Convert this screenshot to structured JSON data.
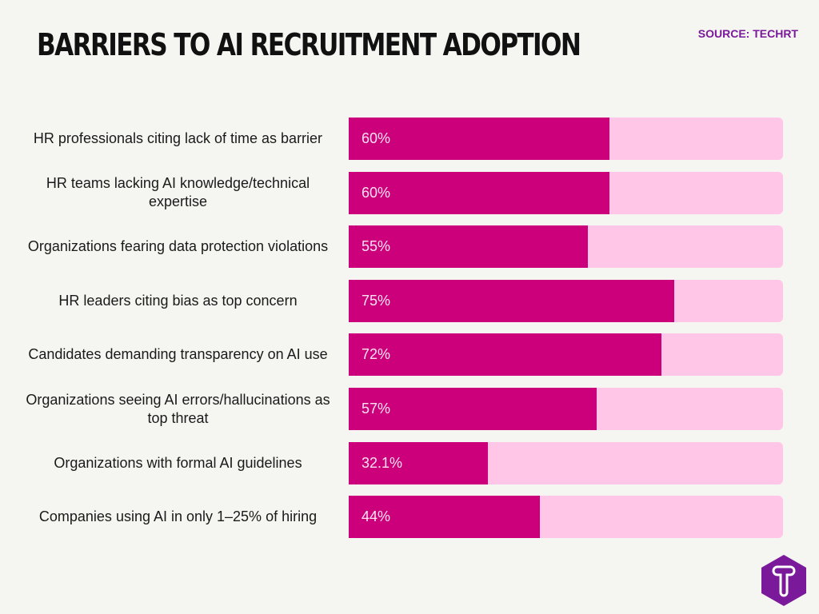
{
  "title": "BARRIERS TO AI RECRUITMENT ADOPTION",
  "source": "SOURCE: TECHRT",
  "colors": {
    "bar": "#cc007a",
    "track": "#ffc6e8",
    "background": "#f5f5f1",
    "logo": "#7a1a9a"
  },
  "logo_icon": "techrt-t-hexagon-logo",
  "chart_data": {
    "type": "bar",
    "orientation": "horizontal",
    "xlim": [
      0,
      100
    ],
    "unit": "%",
    "categories": [
      "HR professionals citing lack of time as barrier",
      "HR teams lacking AI knowledge/technical expertise",
      "Organizations fearing data protection violations",
      "HR leaders citing bias as top concern",
      "Candidates demanding transparency on AI use",
      "Organizations seeing AI errors/hallucinations as top threat",
      "Organizations with formal AI guidelines",
      "Companies using AI in only 1–25% of hiring"
    ],
    "values": [
      60,
      60,
      55,
      75,
      72,
      57,
      32.1,
      44
    ],
    "labels": [
      "60%",
      "60%",
      "55%",
      "75%",
      "72%",
      "57%",
      "32.1%",
      "44%"
    ]
  }
}
